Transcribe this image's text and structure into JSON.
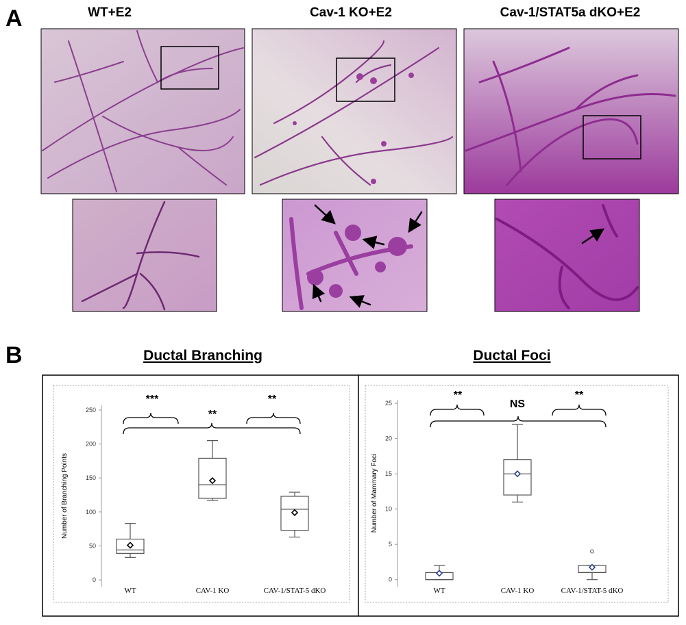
{
  "panels": {
    "a": "A",
    "b": "B"
  },
  "images": [
    "WT+E2",
    "Cav-1 KO+E2",
    "Cav-1/STAT5a dKO+E2"
  ],
  "chart_data": [
    {
      "type": "box",
      "title": "Ductal Branching",
      "ylabel": "Number of Branching Points",
      "categories": [
        "WT",
        "CAV-1 KO",
        "CAV-1/STAT-5 dKO"
      ],
      "boxes": [
        {
          "low": 33,
          "q1": 39,
          "median": 44,
          "q3": 60,
          "high": 83,
          "mean": 51
        },
        {
          "low": 117,
          "q1": 120,
          "median": 140,
          "q3": 179,
          "high": 205,
          "mean": 146
        },
        {
          "low": 63,
          "q1": 73,
          "median": 104,
          "q3": 123,
          "high": 129,
          "mean": 99
        }
      ],
      "color": "#555555",
      "mean_color": "#000000",
      "ylim": [
        -10,
        257
      ],
      "yticks": [
        0,
        50,
        100,
        150,
        200,
        250
      ],
      "annotations": [
        "***",
        "**",
        "**"
      ]
    },
    {
      "type": "box",
      "title": "Ductal Foci",
      "ylabel": "Number of Mammary Foci",
      "categories": [
        "WT",
        "CAV-1 KO",
        "CAV-1/STAT-5 dKO"
      ],
      "boxes": [
        {
          "low": 0,
          "q1": 0,
          "median": 0,
          "q3": 1,
          "high": 2,
          "mean": 0.9
        },
        {
          "low": 11,
          "q1": 12,
          "median": 15,
          "q3": 17,
          "high": 22,
          "mean": 15
        },
        {
          "low": 0,
          "q1": 1,
          "median": 1,
          "q3": 2,
          "high": 2,
          "mean": 1.75,
          "outliers": [
            4
          ]
        }
      ],
      "color": "#555555",
      "mean_color": "#2b3f8c",
      "ylim": [
        -1,
        25.5
      ],
      "yticks": [
        0,
        5,
        10,
        15,
        20,
        25
      ],
      "annotations": [
        "**",
        "NS",
        "**"
      ]
    }
  ]
}
